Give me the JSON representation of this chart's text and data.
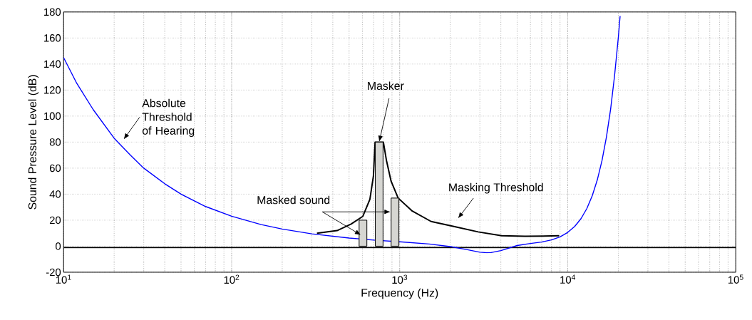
{
  "chart_data": {
    "type": "line",
    "xlabel": "Frequency (Hz)",
    "ylabel": "Sound Pressure Level (dB)",
    "log": "x",
    "grid": true,
    "xlim": [
      10,
      100000
    ],
    "ylim": [
      -20,
      180
    ],
    "xticks": [
      {
        "value": 10,
        "label": "10$^{1}$"
      },
      {
        "value": 100,
        "label": "10$^{2}$"
      },
      {
        "value": 1000,
        "label": "10$^{3}$"
      },
      {
        "value": 10000,
        "label": "10$^{4}$"
      },
      {
        "value": 100000,
        "label": "10$^{5}$"
      }
    ],
    "yticks": [
      -20,
      0,
      20,
      40,
      60,
      80,
      100,
      120,
      140,
      160,
      180
    ],
    "series": [
      {
        "color": "#0000ff",
        "x": [
          10,
          12,
          15,
          20,
          25,
          30,
          40,
          50,
          70,
          100,
          150,
          200,
          300,
          500,
          700,
          1000,
          1500,
          2000,
          2500,
          3000,
          3300,
          3500,
          4000,
          5000,
          6000,
          7000,
          8000,
          9000,
          10000,
          11000,
          12000,
          13000,
          14000,
          15000,
          16000,
          17000,
          18000,
          19000,
          20000,
          20500
        ],
        "values": [
          145,
          125,
          105,
          83,
          70,
          60,
          48,
          40,
          30.5,
          23,
          16.6,
          13.2,
          9.5,
          6.3,
          4.7,
          3.4,
          1.7,
          -0.3,
          -2.6,
          -4.6,
          -5,
          -4.9,
          -3.4,
          0.5,
          2.1,
          3.2,
          4.8,
          7.2,
          10.6,
          15.2,
          21.2,
          29,
          38.9,
          51,
          65.9,
          84,
          105.3,
          131,
          160.3,
          176.9
        ]
      },
      {
        "color": "#000000",
        "x": [
          322,
          424,
          514,
          604,
          665,
          698,
          714,
          800,
          834,
          889,
          979,
          1189,
          1538,
          2124,
          2930,
          4045,
          5576,
          8890
        ],
        "values": [
          10,
          12,
          17,
          23,
          36,
          54,
          80,
          80,
          66,
          50,
          37,
          27,
          19,
          15,
          11,
          8,
          7.6,
          8
        ]
      },
      {
        "type": "bar",
        "color": "#d6d6d2",
        "x": [
          605,
          755,
          938
        ],
        "values": [
          20,
          80,
          37
        ]
      }
    ],
    "ref_lines": [
      {
        "axis": "y",
        "value": -1,
        "color": "#000000"
      }
    ],
    "annotations": [
      "Absolute Threshold of Hearing",
      {
        "text": "Masker",
        "x": 755,
        "y": 80
      },
      "Masking Threshold",
      {
        "text": "Masked sound",
        "x": 590,
        "y": 8.5
      }
    ]
  }
}
